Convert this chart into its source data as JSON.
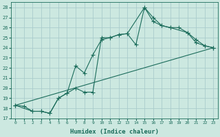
{
  "xlabel": "Humidex (Indice chaleur)",
  "bg_color": "#cce8e0",
  "grid_color": "#aacccc",
  "line_color": "#1a6b5a",
  "xlim": [
    -0.5,
    23.5
  ],
  "ylim": [
    17,
    28.5
  ],
  "xticks": [
    0,
    1,
    2,
    3,
    4,
    5,
    6,
    7,
    8,
    9,
    10,
    11,
    12,
    13,
    14,
    15,
    16,
    17,
    18,
    19,
    20,
    21,
    22,
    23
  ],
  "yticks": [
    17,
    18,
    19,
    20,
    21,
    22,
    23,
    24,
    25,
    26,
    27,
    28
  ],
  "line1_x": [
    0,
    1,
    2,
    3,
    4,
    5,
    6,
    7,
    8,
    9,
    10,
    11,
    12,
    13,
    14,
    15,
    16,
    17,
    18,
    19,
    20,
    21,
    22,
    23
  ],
  "line1_y": [
    18.3,
    18.2,
    17.7,
    17.7,
    17.5,
    19.0,
    19.5,
    22.2,
    21.5,
    23.3,
    24.8,
    25.0,
    25.3,
    25.4,
    24.3,
    28.0,
    26.6,
    26.2,
    26.0,
    26.0,
    25.5,
    24.5,
    24.2,
    24.0
  ],
  "line2_x": [
    0,
    2,
    3,
    4,
    5,
    6,
    7,
    8,
    9,
    10,
    11,
    12,
    13,
    15,
    16,
    17,
    18,
    20,
    21,
    22,
    23
  ],
  "line2_y": [
    18.3,
    17.7,
    17.7,
    17.5,
    19.0,
    19.5,
    20.0,
    19.6,
    19.6,
    25.0,
    25.0,
    25.3,
    25.4,
    28.0,
    27.0,
    26.2,
    26.0,
    25.5,
    24.8,
    24.2,
    24.0
  ],
  "line3_x": [
    0,
    23
  ],
  "line3_y": [
    18.3,
    24.0
  ]
}
